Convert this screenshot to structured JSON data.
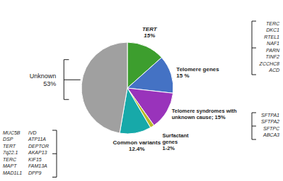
{
  "chart_data": {
    "type": "pie",
    "values": [
      15,
      15,
      15,
      1.6,
      12.4,
      53
    ],
    "value_labels": [
      "TERT\n15%",
      "Telomere genes\n15 %",
      "Telomere syndromes with\nunknown cause; 15%",
      "Surfactant\ngenes\n1-2%",
      "Common variants\n12.4%",
      "Unknown\n53%"
    ],
    "colors": [
      "#3d9e2e",
      "#4472c4",
      "#9933bb",
      "#b8b82a",
      "#17a9a9",
      "#a0a0a0"
    ],
    "data_labels": true,
    "annotations": [
      "TERC\nDKC1\nRTEL1\nNAF1\nPARN\nTINF2\nZCCHC8\nACD",
      "SFTPA1\nSFTPA2\nSFTPC\nABCA3",
      "MUC5B\nDSP\nTERT\n7q22.1\nTERC\nMAPT\nMAD1L1",
      "IVD\nATP11A\nDEPTOR\nAKAP13\nKIF15\nFAM13A\nDPP9"
    ]
  }
}
